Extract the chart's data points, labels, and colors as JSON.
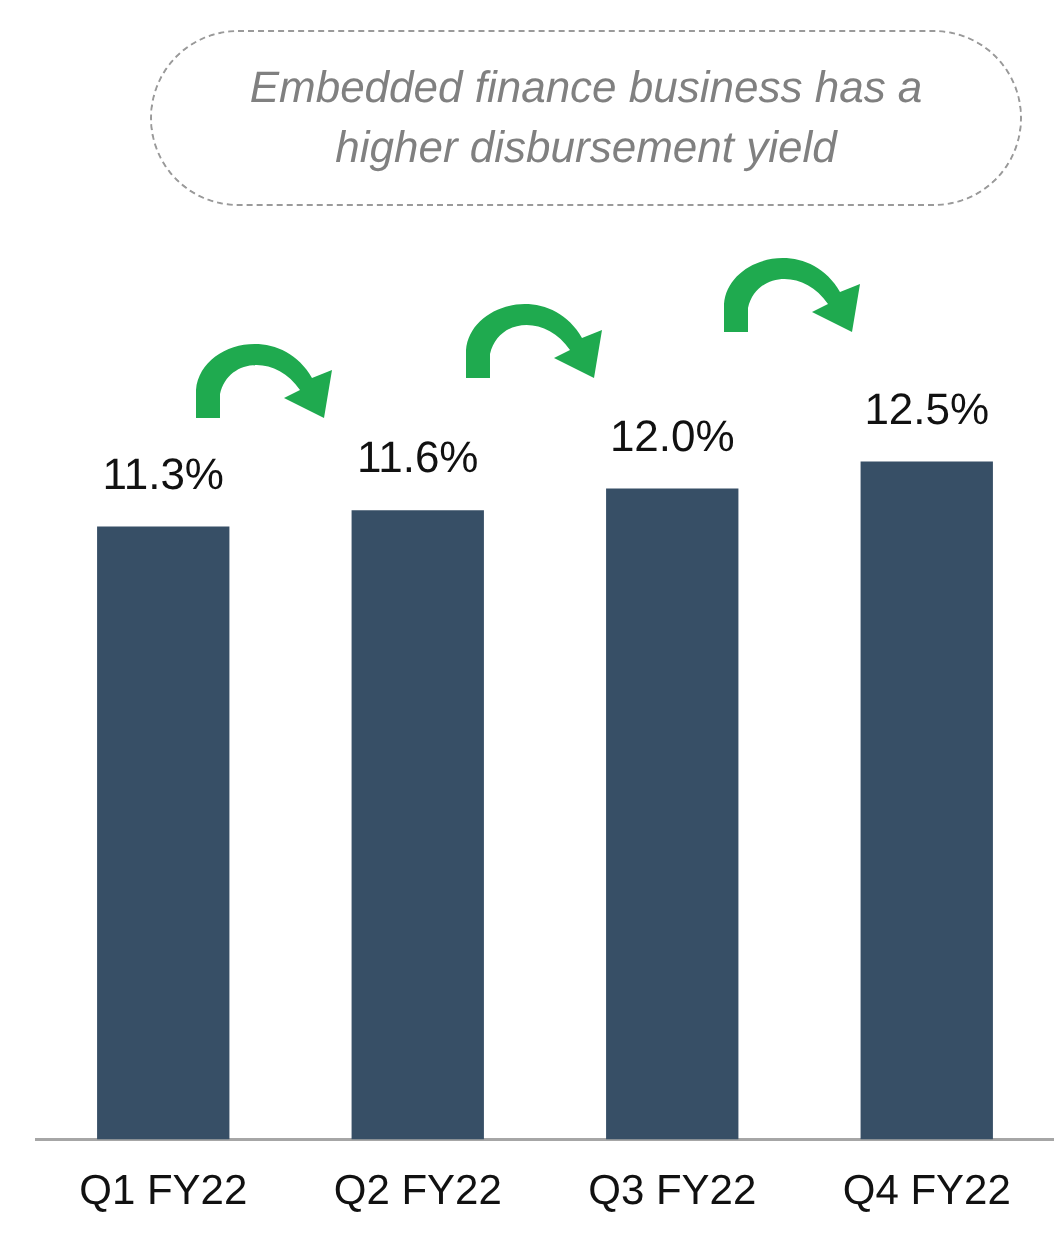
{
  "chart_data": {
    "type": "bar",
    "title": "Embedded finance business has a higher disbursement yield",
    "categories": [
      "Q1 FY22",
      "Q2 FY22",
      "Q3 FY22",
      "Q4 FY22"
    ],
    "values": [
      11.3,
      11.6,
      12.0,
      12.5
    ],
    "value_labels": [
      "11.3%",
      "11.6%",
      "12.0%",
      "12.5%"
    ],
    "color": "#374f66",
    "tick_labels": "x",
    "grid": false,
    "legend": false
  }
}
